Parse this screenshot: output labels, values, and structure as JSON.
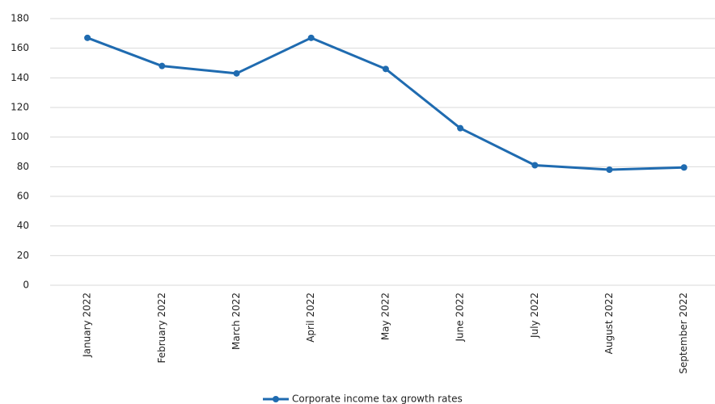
{
  "chart_data": {
    "type": "line",
    "categories": [
      "January 2022",
      "February 2022",
      "March 2022",
      "April 2022",
      "May 2022",
      "June 2022",
      "July 2022",
      "August 2022",
      "September 2022"
    ],
    "series": [
      {
        "name": "Corporate income tax growth rates",
        "color": "#1f6bb0",
        "values": [
          167,
          148,
          143,
          167,
          146,
          106,
          81,
          78,
          79.5
        ]
      }
    ],
    "ylim": [
      0,
      180
    ],
    "yticks": [
      0,
      20,
      40,
      60,
      80,
      100,
      120,
      140,
      160,
      180
    ],
    "grid": true,
    "legend": "bottom"
  }
}
